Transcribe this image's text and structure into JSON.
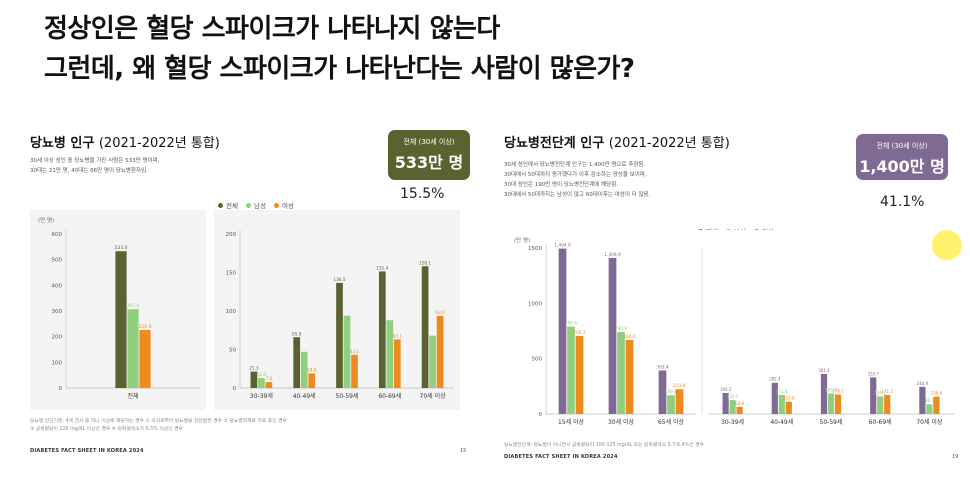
{
  "headline": {
    "line1": "정상인은 혈당 스파이크가 나타나지 않는다",
    "line2": "그런데, 왜 혈당 스파이크가 나타난다는 사람이 많은가?"
  },
  "colors": {
    "total_dm": "#5b6230",
    "male": "#8fcf7d",
    "female": "#ee8a1e",
    "total_pre": "#7f6a93",
    "badge_dm": "#5b6230",
    "badge_pre": "#7f6a93"
  },
  "left_slide": {
    "title": "당뇨병 인구",
    "year": "(2021-2022년 통합)",
    "desc": [
      "30세 이상 성인 중 당뇨병을 가진 사람은 533만 명이며,",
      "30대는 21만 명, 40대는 66만 명이 당뇨병환자임."
    ],
    "badge_label": "전체 (30세 이상)",
    "badge_value": "533만 명",
    "percent": "15.5%",
    "legend": [
      "전체",
      "남성",
      "여성"
    ],
    "unit": "(만 명)",
    "footnote": [
      "당뇨병 진단기준: 4개 검사 중 하나 이상에 해당하는 경우 ① 의사로부터 당뇨병을 진단받은 경우 ② 당뇨병약제로 치료 중인 경우",
      "③ 공복혈당이 126 mg/dL 이상인 경우 ④ 당화혈색소가 6.5% 이상인 경우"
    ],
    "factsheet": "DIABETES FACT SHEET IN KOREA 2024",
    "page": "15"
  },
  "right_slide": {
    "title": "당뇨병전단계 인구",
    "year": "(2021-2022년 통합)",
    "desc": [
      "30세 성인에서 당뇨병전단계 인구는 1,400만 명으로 추정됨.",
      "30대에서 50대까지 증가했다가 이후 감소하는 양상을 보이며,",
      "30대 성인은 190만 명이 당뇨병전단계에 해당함.",
      "30대에서 50대까지는 남성이 많고 60대이후는 여성이 더 많음."
    ],
    "badge_label": "전체 (30세 이상)",
    "badge_value": "1,400만 명",
    "percent": "41.1%",
    "legend": [
      "전체",
      "남성",
      "여성"
    ],
    "unit": "(만 명)",
    "footnote": [
      "당뇨병전단계: 당뇨병이 아니면서 공복혈당이 100-125 mg/dL 또는 당화혈색소 5.7-6.4%인 경우"
    ],
    "factsheet": "DIABETES FACT SHEET IN KOREA 2024",
    "page": "19"
  },
  "chart_data": [
    {
      "type": "bar",
      "title": "당뇨병 인구",
      "ylabel": "(만 명)",
      "ylim": [
        0,
        600
      ],
      "yticks": [
        0,
        100,
        200,
        300,
        400,
        500,
        600
      ],
      "categories": [
        "전체"
      ],
      "series": [
        {
          "name": "전체",
          "values": [
            533.0
          ],
          "labels": [
            "533.0"
          ]
        },
        {
          "name": "남성",
          "values": [
            307.0
          ],
          "labels": [
            "307.0"
          ]
        },
        {
          "name": "여성",
          "values": [
            226.0
          ],
          "labels": [
            "226.0"
          ]
        }
      ]
    },
    {
      "type": "bar",
      "title": "당뇨병 인구",
      "ylabel": "",
      "ylim": [
        0,
        200
      ],
      "yticks": [
        0,
        50,
        100,
        150,
        200
      ],
      "categories": [
        "30-39세",
        "40-49세",
        "50-59세",
        "60-69세",
        "70세 이상"
      ],
      "series": [
        {
          "name": "전체",
          "values": [
            21.3,
            65.9,
            136.5,
            151.4,
            158.1
          ],
          "labels": [
            "21.3",
            "65.9",
            "136.5",
            "151.4",
            "158.1"
          ]
        },
        {
          "name": "남성",
          "values": [
            12.9,
            47.0,
            94.0,
            88.0,
            68.0
          ],
          "labels": [
            "12.9",
            "",
            "",
            "",
            ""
          ]
        },
        {
          "name": "여성",
          "values": [
            7.6,
            18.9,
            43.1,
            63.1,
            93.6
          ],
          "labels": [
            "7.6",
            "18.9",
            "43.1",
            "63.1",
            "93.6"
          ]
        }
      ]
    },
    {
      "type": "bar",
      "title": "당뇨병전단계 인구",
      "ylabel": "(만 명)",
      "ylim": [
        0,
        1500
      ],
      "yticks": [
        0,
        500,
        1000,
        1500
      ],
      "categories": [
        "15세 이상",
        "30세 이상",
        "65세 이상"
      ],
      "series": [
        {
          "name": "전체",
          "values": [
            1494.9,
            1409.9,
            393.4
          ],
          "labels": [
            "1,494.9",
            "1,409.9",
            "393.4"
          ]
        },
        {
          "name": "남성",
          "values": [
            789.6,
            740.9,
            169.6
          ],
          "labels": [
            "789.6",
            "740.9",
            "169.6"
          ]
        },
        {
          "name": "여성",
          "values": [
            705.3,
            669.0,
            223.8
          ],
          "labels": [
            "705.3",
            "669.0",
            "223.8"
          ]
        }
      ]
    },
    {
      "type": "bar",
      "title": "당뇨병전단계 인구",
      "ylabel": "",
      "ylim": [
        0,
        1500
      ],
      "categories": [
        "30-39세",
        "40-49세",
        "50-59세",
        "60-69세",
        "70세 이상"
      ],
      "series": [
        {
          "name": "전체",
          "values": [
            190.2,
            282.4,
            361.4,
            330.7,
            244.9
          ],
          "labels": [
            "190.2",
            "282.4",
            "361.4",
            "330.7",
            "244.9"
          ]
        },
        {
          "name": "남성",
          "values": [
            125.3,
            171.6,
            185.2,
            159.2,
            88.3
          ],
          "labels": [
            "125.3",
            "171.6",
            "185.2",
            "159.2",
            "88.3"
          ]
        },
        {
          "name": "여성",
          "values": [
            64.9,
            110.8,
            176.2,
            171.5,
            156.6
          ],
          "labels": [
            "64.9",
            "110.8",
            "176.2",
            "171.5",
            "156.6"
          ]
        }
      ]
    }
  ]
}
